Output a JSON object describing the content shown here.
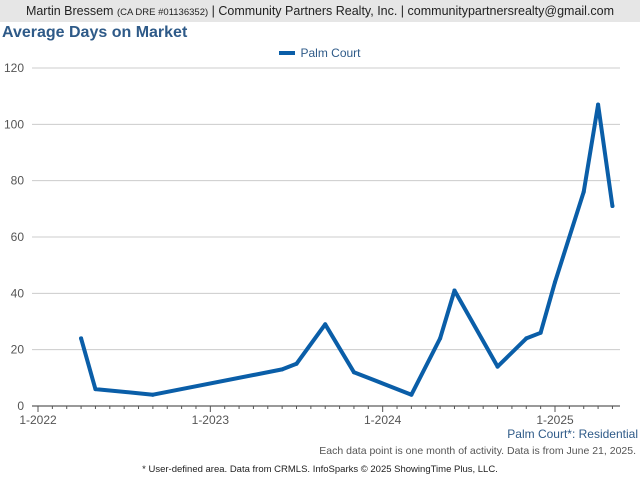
{
  "header": {
    "agent_name": "Martin Bressem",
    "dre": "(CA DRE #01136352)",
    "company": "| Community Partners Realty, Inc. |",
    "email": "communitypartnersrealty@gmail.com"
  },
  "area_label": "Palm Court*: Residential",
  "note": "Each data point is one month of activity. Data is from June 21, 2025.",
  "footer": "* User-defined area. Data from CRMLS. InfoSparks © 2025 ShowingTime Plus, LLC.",
  "colors": {
    "series": "#0a5ea8",
    "title": "#2e5a88",
    "grid": "#cccccc"
  },
  "chart_data": {
    "type": "line",
    "title": "Average Days on Market",
    "xlabel": "",
    "ylabel": "",
    "ylim": [
      0,
      120
    ],
    "yticks": [
      0,
      20,
      40,
      60,
      80,
      100,
      120
    ],
    "xticks": [
      "1-2022",
      "1-2023",
      "1-2024",
      "1-2025"
    ],
    "legend": "top-center",
    "grid": true,
    "series": [
      {
        "name": "Palm Court",
        "color": "#0a5ea8",
        "points": [
          {
            "x": "2022-04",
            "y": 24
          },
          {
            "x": "2022-05",
            "y": 6
          },
          {
            "x": "2022-09",
            "y": 4
          },
          {
            "x": "2023-06",
            "y": 13
          },
          {
            "x": "2023-07",
            "y": 15
          },
          {
            "x": "2023-09",
            "y": 29
          },
          {
            "x": "2023-11",
            "y": 12
          },
          {
            "x": "2024-03",
            "y": 4
          },
          {
            "x": "2024-05",
            "y": 24
          },
          {
            "x": "2024-06",
            "y": 41
          },
          {
            "x": "2024-09",
            "y": 14
          },
          {
            "x": "2024-11",
            "y": 24
          },
          {
            "x": "2024-12",
            "y": 26
          },
          {
            "x": "2025-01",
            "y": 44
          },
          {
            "x": "2025-03",
            "y": 76
          },
          {
            "x": "2025-04",
            "y": 107
          },
          {
            "x": "2025-05",
            "y": 71
          }
        ]
      }
    ]
  }
}
